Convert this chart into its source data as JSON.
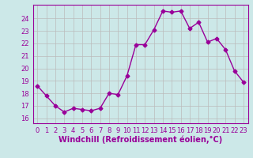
{
  "x": [
    0,
    1,
    2,
    3,
    4,
    5,
    6,
    7,
    8,
    9,
    10,
    11,
    12,
    13,
    14,
    15,
    16,
    17,
    18,
    19,
    20,
    21,
    22,
    23
  ],
  "y": [
    18.6,
    17.8,
    17.0,
    16.5,
    16.8,
    16.7,
    16.6,
    16.8,
    18.0,
    17.9,
    19.4,
    21.9,
    21.9,
    23.1,
    24.6,
    24.5,
    24.6,
    23.2,
    23.7,
    22.1,
    22.4,
    21.5,
    19.8,
    18.9
  ],
  "line_color": "#990099",
  "marker": "D",
  "markersize": 2.5,
  "linewidth": 1,
  "bg_color": "#cce8e8",
  "grid_color": "#bbbbbb",
  "xlabel": "Windchill (Refroidissement éolien,°C)",
  "xlabel_fontsize": 7,
  "ylabel_ticks": [
    16,
    17,
    18,
    19,
    20,
    21,
    22,
    23,
    24
  ],
  "xtick_labels": [
    "0",
    "1",
    "2",
    "3",
    "4",
    "5",
    "6",
    "7",
    "8",
    "9",
    "10",
    "11",
    "12",
    "13",
    "14",
    "15",
    "16",
    "17",
    "18",
    "19",
    "20",
    "21",
    "22",
    "23"
  ],
  "ylim": [
    15.6,
    25.1
  ],
  "xlim": [
    -0.5,
    23.5
  ],
  "tick_fontsize": 6
}
